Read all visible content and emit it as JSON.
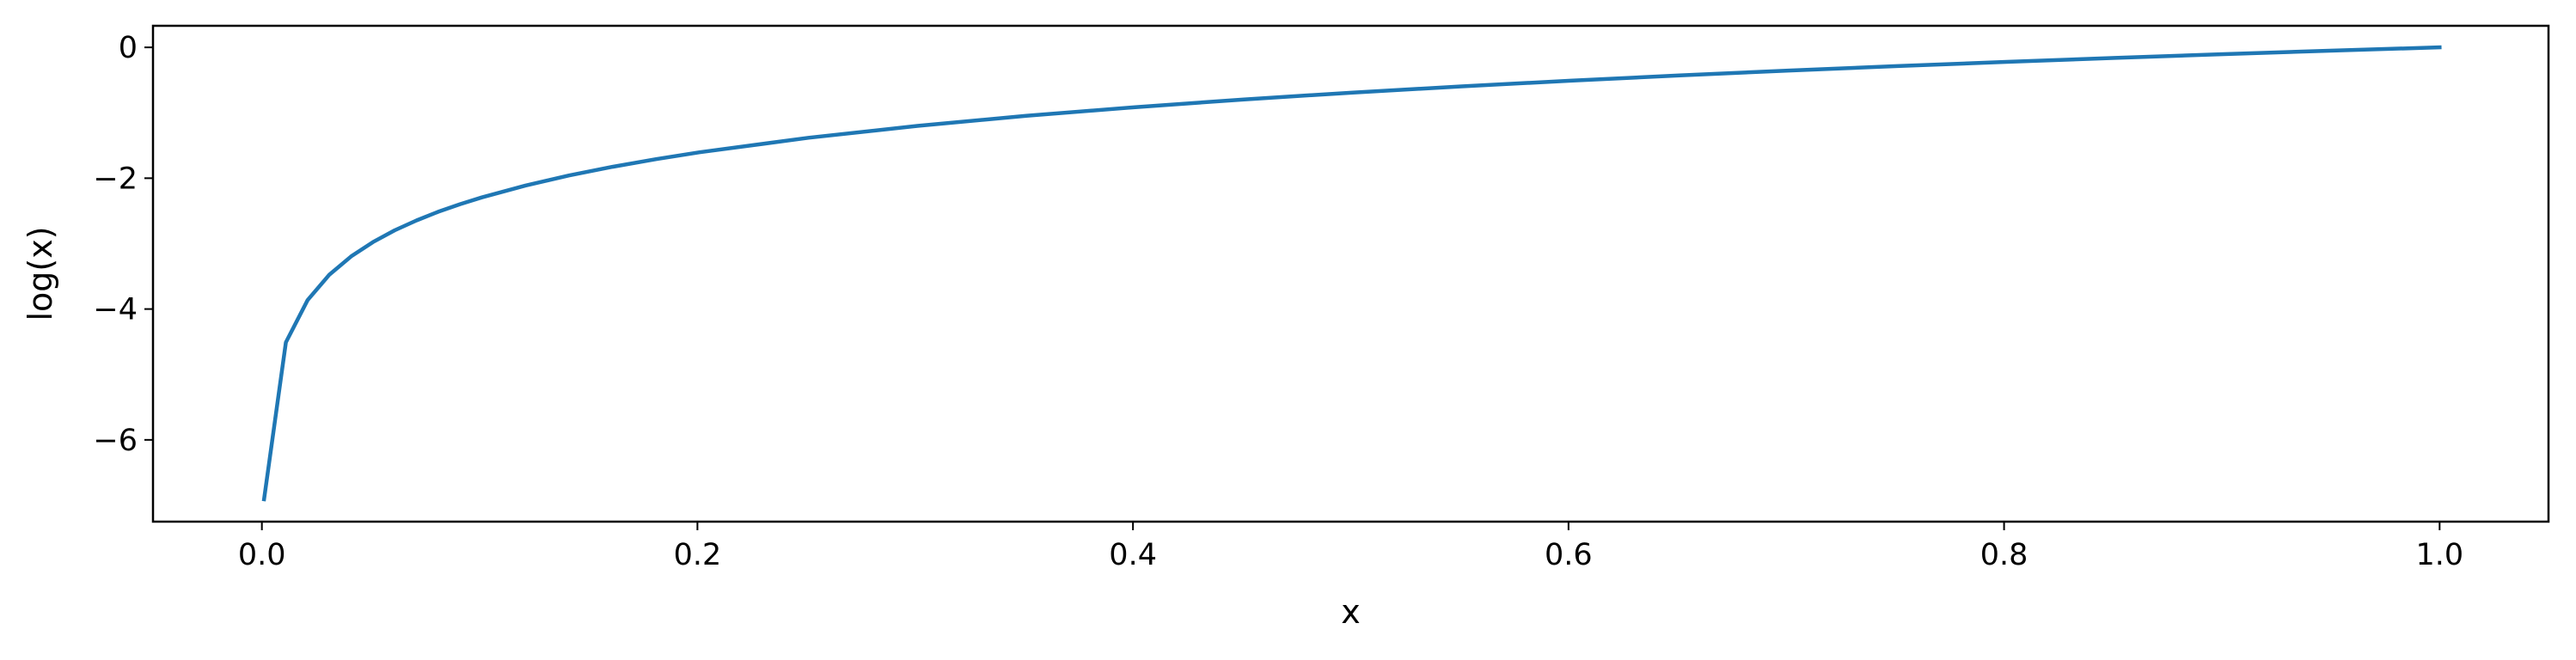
{
  "chart_data": {
    "type": "line",
    "title": "",
    "xlabel": "x",
    "ylabel": "log(x)",
    "xlim": [
      -0.05,
      1.05
    ],
    "ylim": [
      -7.25,
      0.33
    ],
    "x_ticks": [
      0.0,
      0.2,
      0.4,
      0.6,
      0.8,
      1.0
    ],
    "x_tick_labels": [
      "0.0",
      "0.2",
      "0.4",
      "0.6",
      "0.8",
      "1.0"
    ],
    "y_ticks": [
      0,
      -2,
      -4,
      -6
    ],
    "y_tick_labels": [
      "0",
      "−2",
      "−4",
      "−6"
    ],
    "grid": false,
    "legend": "none",
    "series": [
      {
        "color": "#1f77b4",
        "x": [
          0.001,
          0.011,
          0.021,
          0.031,
          0.041,
          0.051,
          0.061,
          0.071,
          0.081,
          0.091,
          0.101,
          0.121,
          0.141,
          0.161,
          0.181,
          0.201,
          0.251,
          0.301,
          0.351,
          0.401,
          0.451,
          0.501,
          0.551,
          0.601,
          0.651,
          0.701,
          0.751,
          0.801,
          0.851,
          0.901,
          0.951,
          1.0
        ],
        "y": [
          -6.908,
          -4.51,
          -3.863,
          -3.474,
          -3.194,
          -2.976,
          -2.797,
          -2.645,
          -2.513,
          -2.397,
          -2.293,
          -2.112,
          -1.959,
          -1.826,
          -1.709,
          -1.604,
          -1.382,
          -1.201,
          -1.047,
          -0.914,
          -0.796,
          -0.691,
          -0.596,
          -0.509,
          -0.429,
          -0.355,
          -0.286,
          -0.222,
          -0.161,
          -0.104,
          -0.05,
          0.0
        ]
      }
    ]
  }
}
